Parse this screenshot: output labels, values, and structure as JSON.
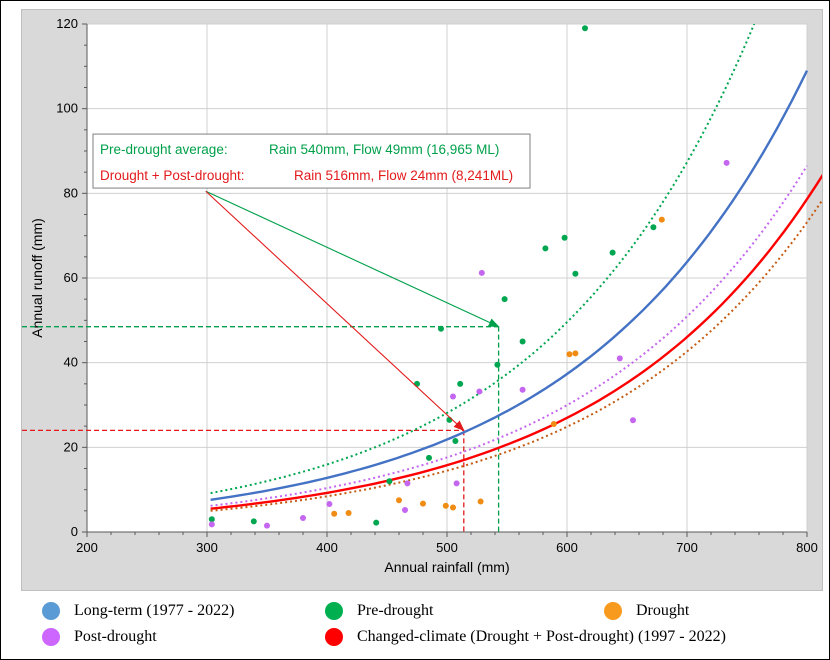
{
  "chart_data": {
    "type": "scatter",
    "xlabel": "Annual rainfall (mm)",
    "ylabel": "Annual runoff (mm)",
    "xlim": [
      200,
      800
    ],
    "ylim": [
      0,
      120
    ],
    "xticks": [
      "200",
      "300",
      "400",
      "500",
      "600",
      "700",
      "800"
    ],
    "yticks": [
      "0",
      "20",
      "40",
      "60",
      "80",
      "100",
      "120"
    ],
    "grid": true,
    "legend_position": "bottom",
    "annotations": [
      {
        "label": "Pre-drought  average:",
        "text": "Rain 540mm, Flow 49mm (16,965 ML)",
        "color": "#00a04a",
        "target_x": 543,
        "target_y": 48.5
      },
      {
        "label": "Drought + Post-drought:",
        "text": "Rain 516mm, Flow 24mm (8,241ML)",
        "color": "#e31a1c",
        "target_x": 514,
        "target_y": 24
      }
    ],
    "series": [
      {
        "name": "Pre-drought",
        "color": "#00a650",
        "points": [
          [
            304,
            3
          ],
          [
            339,
            2.5
          ],
          [
            441,
            2.2
          ],
          [
            452,
            12
          ],
          [
            475,
            35
          ],
          [
            485,
            17.5
          ],
          [
            495,
            48
          ],
          [
            502,
            26.5
          ],
          [
            507,
            21.5
          ],
          [
            511,
            35
          ],
          [
            542,
            39.5
          ],
          [
            548,
            55
          ],
          [
            563,
            45
          ],
          [
            582,
            67
          ],
          [
            598,
            69.5
          ],
          [
            607,
            61
          ],
          [
            615,
            119
          ],
          [
            638,
            66
          ],
          [
            672,
            72
          ]
        ]
      },
      {
        "name": "Drought",
        "color": "#f08c14",
        "points": [
          [
            406,
            4.3
          ],
          [
            418,
            4.5
          ],
          [
            460,
            7.5
          ],
          [
            480,
            6.7
          ],
          [
            499,
            6.2
          ],
          [
            505,
            5.8
          ],
          [
            528,
            7.2
          ],
          [
            589,
            25.5
          ],
          [
            602,
            42
          ],
          [
            607,
            42.2
          ],
          [
            679,
            73.8
          ]
        ]
      },
      {
        "name": "Post-drought",
        "color": "#c466f0",
        "points": [
          [
            304,
            1.8
          ],
          [
            350,
            1.5
          ],
          [
            380,
            3.3
          ],
          [
            402,
            6.6
          ],
          [
            465,
            5.2
          ],
          [
            467,
            11.5
          ],
          [
            505,
            32
          ],
          [
            508,
            11.5
          ],
          [
            527,
            33.2
          ],
          [
            529,
            61.2
          ],
          [
            563,
            33.6
          ],
          [
            644,
            41
          ],
          [
            655,
            26.4
          ],
          [
            733,
            87.2
          ]
        ]
      }
    ],
    "curves": [
      {
        "name": "Long-term (1977 - 2022)",
        "color": "#4472c4",
        "style": "solid",
        "x_range": [
          303,
          800
        ],
        "y_start": 7.6,
        "y_end": 109
      },
      {
        "name": "Pre-drought",
        "color": "#00a650",
        "style": "dotted",
        "x_range": [
          303,
          756
        ],
        "y_start": 9.2,
        "y_end": 120
      },
      {
        "name": "Post-drought",
        "color": "#c466f0",
        "style": "dotted",
        "x_range": [
          303,
          800
        ],
        "y_start": 6.2,
        "y_end": 86.5
      },
      {
        "name": "Changed-climate (Drought + Post-drought) (1997 - 2022)",
        "color": "#ff0000",
        "style": "solid",
        "x_range": [
          303,
          820
        ],
        "y_start": 5.5,
        "y_end": 87.5
      },
      {
        "name": "Drought",
        "color": "#c55a11",
        "style": "dotted",
        "x_range": [
          303,
          820
        ],
        "y_start": 5.0,
        "y_end": 81.5
      }
    ],
    "guides": [
      {
        "color": "#00a04a",
        "x": 543,
        "y": 48.5
      },
      {
        "color": "#e31a1c",
        "x": 514,
        "y": 24
      }
    ]
  },
  "legend": {
    "items": [
      {
        "label": "Long-term (1977 - 2022)",
        "color": "#5b9bd5"
      },
      {
        "label": "Pre-drought",
        "color": "#00b050"
      },
      {
        "label": "Drought",
        "color": "#f79a1e"
      },
      {
        "label": "Post-drought",
        "color": "#cc66ff"
      },
      {
        "label": "Changed-climate (Drought + Post-drought) (1997 - 2022)",
        "color": "#ff0000"
      }
    ]
  }
}
